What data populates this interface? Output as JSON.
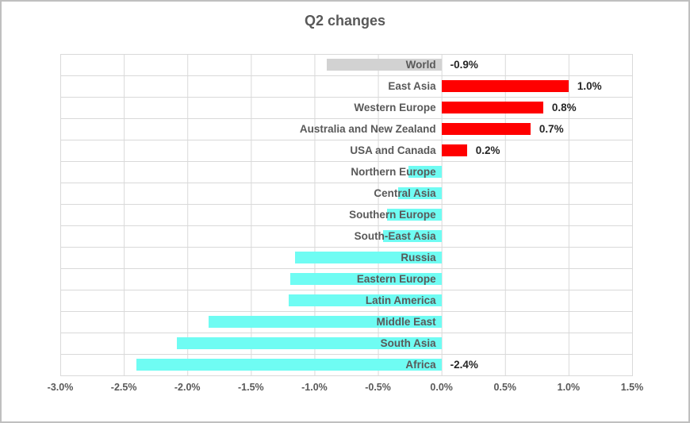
{
  "chart_data": {
    "type": "bar",
    "orientation": "horizontal",
    "title": "Q2 changes",
    "xlabel": "",
    "ylabel": "",
    "xlim": [
      -3.0,
      1.5
    ],
    "x_tick_step": 0.5,
    "x_ticks": [
      "-3.0%",
      "-2.5%",
      "-2.0%",
      "-1.5%",
      "-1.0%",
      "-0.5%",
      "0.0%",
      "0.5%",
      "1.0%",
      "1.5%"
    ],
    "grid": true,
    "legend": null,
    "categories": [
      "World",
      "East Asia",
      "Western Europe",
      "Australia and New Zealand",
      "USA and Canada",
      "Northern Europe",
      "Central Asia",
      "Southern Europe",
      "South-East Asia",
      "Russia",
      "Eastern Europe",
      "Latin America",
      "Middle East",
      "South Asia",
      "Africa"
    ],
    "values": [
      -0.9,
      1.0,
      0.8,
      0.7,
      0.2,
      -0.26,
      -0.34,
      -0.43,
      -0.46,
      -1.15,
      -1.19,
      -1.2,
      -1.83,
      -2.08,
      -2.4
    ],
    "data_labels": [
      "-0.9%",
      "1.0%",
      "0.8%",
      "0.7%",
      "0.2%",
      null,
      null,
      null,
      null,
      null,
      null,
      null,
      null,
      null,
      "-2.4%"
    ],
    "bar_colors": [
      "#d2d2d2",
      "#ff0000",
      "#ff0000",
      "#ff0000",
      "#ff0000",
      "#6ffcf3",
      "#6ffcf3",
      "#6ffcf3",
      "#6ffcf3",
      "#6ffcf3",
      "#6ffcf3",
      "#6ffcf3",
      "#6ffcf3",
      "#6ffcf3",
      "#6ffcf3"
    ]
  },
  "colors": {
    "positive_bar": "#ff0000",
    "negative_bar": "#6ffcf3",
    "world_bar": "#d2d2d2",
    "gridline": "#d9d9d9",
    "frame_border": "#bfbfbf",
    "title_text": "#595959",
    "category_text": "#595959",
    "axis_text": "#595959",
    "data_label_text": "#262626"
  }
}
